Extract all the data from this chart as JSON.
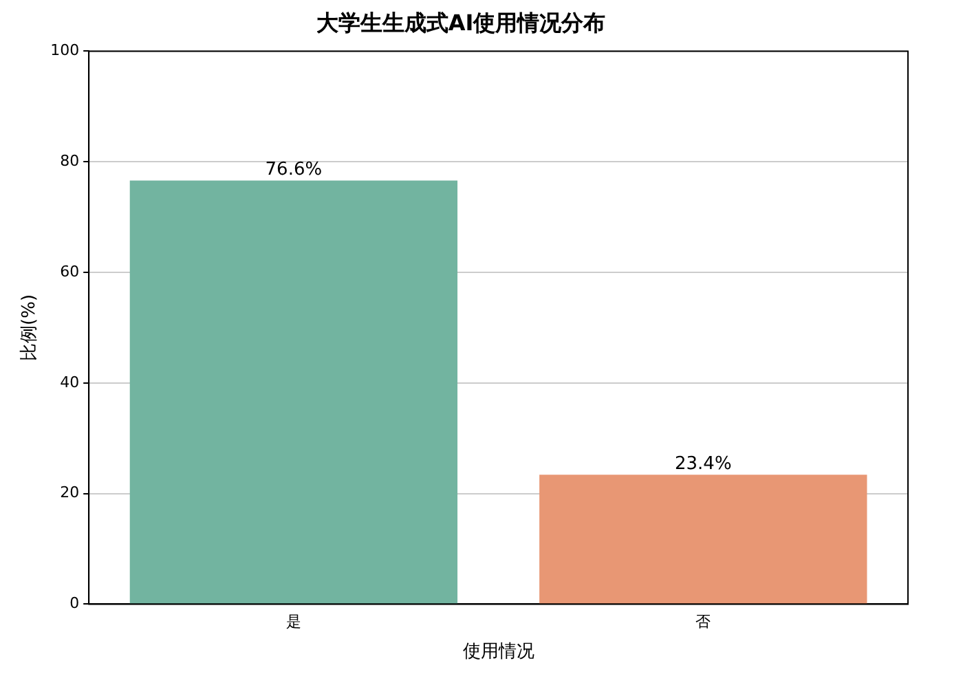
{
  "chart_data": {
    "type": "bar",
    "title": "大学生生成式AI使用情况分布",
    "xlabel": "使用情况",
    "ylabel": "比例(%)",
    "categories": [
      "是",
      "否"
    ],
    "values": [
      76.6,
      23.4
    ],
    "colors": [
      "#72b4a0",
      "#e89774"
    ],
    "value_labels": [
      "76.6%",
      "23.4%"
    ],
    "ylim": [
      0,
      100
    ],
    "yticks": [
      0,
      20,
      40,
      60,
      80,
      100
    ],
    "grid": "y",
    "legend": false
  }
}
